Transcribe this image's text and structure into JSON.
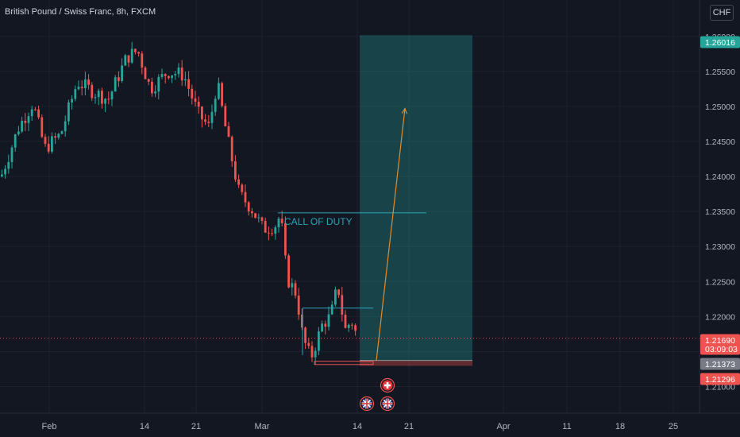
{
  "header": {
    "symbol_title": "British Pound / Swiss Franc, 8h, FXCM",
    "currency": "CHF"
  },
  "chart_data": {
    "type": "candlestick",
    "title": "British Pound / Swiss Franc, 8h, FXCM",
    "y_axis": {
      "range": [
        1.2062,
        1.2652
      ],
      "ticks": [
        "1.21000",
        "1.21500",
        "1.22000",
        "1.22500",
        "1.23000",
        "1.23500",
        "1.24000",
        "1.24500",
        "1.25000",
        "1.25500",
        "1.26000"
      ]
    },
    "x_axis": {
      "ticks": [
        "Feb",
        "14",
        "21",
        "Mar",
        "14",
        "21",
        "Apr",
        "11",
        "18",
        "25"
      ]
    },
    "price_labels": [
      {
        "value": "1.26016",
        "style": "target"
      },
      {
        "value": "1.21690",
        "style": "current",
        "countdown": "03:09:03"
      },
      {
        "value": "1.21373",
        "style": "entry"
      },
      {
        "value": "1.21296",
        "style": "stop"
      }
    ],
    "annotations": [
      {
        "type": "text",
        "text": "CALL OF DUTY"
      },
      {
        "type": "horizontal_line",
        "price": 1.2348
      },
      {
        "type": "horizontal_line",
        "price": 1.2212
      },
      {
        "type": "arrow",
        "from_price": 1.2137,
        "to_price": 1.2497
      }
    ],
    "position": {
      "direction": "long",
      "entry": 1.21373,
      "target": 1.26016,
      "stop": 1.21296
    },
    "current_price": 1.2169,
    "colors": {
      "background": "#131722",
      "up": "#26a69a",
      "down": "#ef5350",
      "profit_zone": "#26a69a",
      "loss_zone": "#ef5350",
      "annotation_line": "#2aa3b7",
      "arrow": "#e38b2c",
      "current_price": "#ef5350"
    },
    "event_icons": [
      "swiss-flag-icon",
      "uk-flag-icon",
      "uk-flag-icon"
    ]
  }
}
